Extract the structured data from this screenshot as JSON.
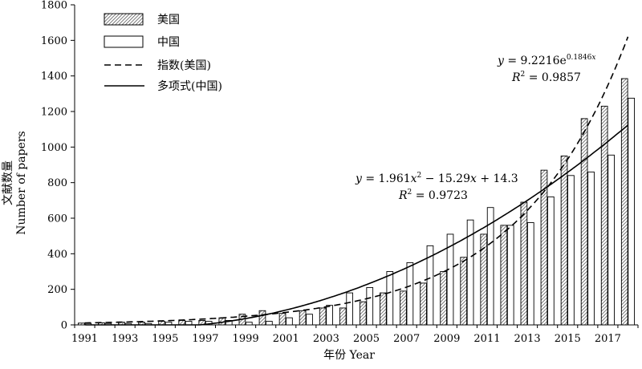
{
  "chart_data": {
    "type": "bar",
    "title": "",
    "xlabel": "年份 Year",
    "ylabel_cn": "文献数量",
    "ylabel_en": "Number of papers",
    "ylim": [
      0,
      1800
    ],
    "yticks": [
      0,
      200,
      400,
      600,
      800,
      1000,
      1200,
      1400,
      1600,
      1800
    ],
    "x_tick_labels": [
      "1991",
      "1993",
      "1995",
      "1997",
      "1999",
      "2001",
      "2003",
      "2005",
      "2007",
      "2009",
      "2011",
      "2013",
      "2015",
      "2017"
    ],
    "categories": [
      1991,
      1992,
      1993,
      1994,
      1995,
      1996,
      1997,
      1998,
      1999,
      2000,
      2001,
      2002,
      2003,
      2004,
      2005,
      2006,
      2007,
      2008,
      2009,
      2010,
      2011,
      2012,
      2013,
      2014,
      2015,
      2016,
      2017,
      2018
    ],
    "grid": false,
    "legend_position": "top-left",
    "series": [
      {
        "name": "美国",
        "pattern": "hatched",
        "values": [
          10,
          12,
          15,
          15,
          20,
          25,
          25,
          40,
          60,
          80,
          65,
          80,
          95,
          95,
          130,
          180,
          190,
          235,
          300,
          380,
          510,
          560,
          690,
          870,
          950,
          1160,
          1230,
          1385
        ]
      },
      {
        "name": "中国",
        "pattern": "open",
        "values": [
          8,
          8,
          8,
          8,
          15,
          20,
          20,
          25,
          15,
          20,
          40,
          60,
          110,
          180,
          210,
          300,
          350,
          445,
          510,
          590,
          660,
          560,
          575,
          720,
          840,
          860,
          955,
          1275
        ]
      }
    ],
    "trendlines": [
      {
        "name": "指数(美国)",
        "style": "dashed",
        "model": "exponential",
        "a": 9.2216,
        "b": 0.1846,
        "equation": "y = 9.2216e0.1846x",
        "r2": "R2 = 0.9857"
      },
      {
        "name": "多项式(中国)",
        "style": "solid",
        "model": "polynomial",
        "coefficients": [
          1.961,
          -15.29,
          14.3
        ],
        "equation": "y = 1.961x2 − 15.29x + 14.3",
        "r2": "R2 = 0.9723"
      }
    ]
  }
}
